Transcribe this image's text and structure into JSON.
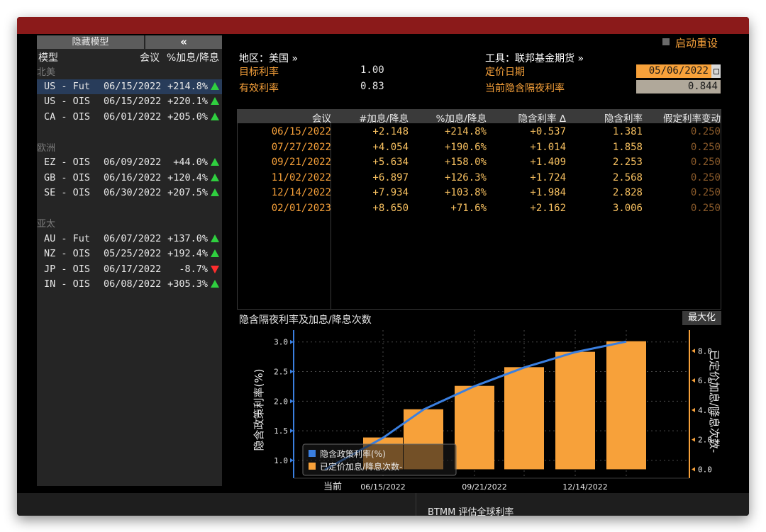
{
  "left_panel": {
    "hide_model_label": "隐藏模型",
    "collapse_label": "«",
    "headers": {
      "model": "模型",
      "meeting": "会议",
      "pct": "%加息/降息"
    },
    "groups": [
      {
        "name": "北美",
        "rows": [
          {
            "name": "US - Fut",
            "date": "06/15/2022",
            "pct": "+214.8%",
            "dir": "up",
            "selected": true
          },
          {
            "name": "US - OIS",
            "date": "06/15/2022",
            "pct": "+220.1%",
            "dir": "up"
          },
          {
            "name": "CA - OIS",
            "date": "06/01/2022",
            "pct": "+205.0%",
            "dir": "up"
          }
        ]
      },
      {
        "name": "欧洲",
        "rows": [
          {
            "name": "EZ - OIS",
            "date": "06/09/2022",
            "pct": "+44.0%",
            "dir": "up"
          },
          {
            "name": "GB - OIS",
            "date": "06/16/2022",
            "pct": "+120.4%",
            "dir": "up"
          },
          {
            "name": "SE - OIS",
            "date": "06/30/2022",
            "pct": "+207.5%",
            "dir": "up"
          }
        ]
      },
      {
        "name": "亚太",
        "rows": [
          {
            "name": "AU - Fut",
            "date": "06/07/2022",
            "pct": "+137.0%",
            "dir": "up"
          },
          {
            "name": "NZ - OIS",
            "date": "05/25/2022",
            "pct": "+192.4%",
            "dir": "up"
          },
          {
            "name": "JP - OIS",
            "date": "06/17/2022",
            "pct": "-8.7%",
            "dir": "down"
          },
          {
            "name": "IN - OIS",
            "date": "06/08/2022",
            "pct": "+305.3%",
            "dir": "up"
          }
        ]
      }
    ]
  },
  "top": {
    "restart_label": "启动重设",
    "region_label": "地区：美国 »",
    "tool_label": "工具：联邦基金期货 »",
    "target_rate_label": "目标利率",
    "target_rate_value": "1.00",
    "effective_rate_label": "有效利率",
    "effective_rate_value": "0.83",
    "pricing_date_label": "定价日期",
    "pricing_date_value": "05/06/2022",
    "implied_on_rate_label": "当前隐含隔夜利率",
    "implied_on_rate_value": "0.844"
  },
  "table": {
    "headers": [
      "会议",
      "#加息/降息",
      "%加息/降息",
      "隐含利率 Δ",
      "隐含利率",
      "假定利率变动"
    ],
    "rows": [
      [
        "06/15/2022",
        "+2.148",
        "+214.8%",
        "+0.537",
        "1.381",
        "0.250"
      ],
      [
        "07/27/2022",
        "+4.054",
        "+190.6%",
        "+1.014",
        "1.858",
        "0.250"
      ],
      [
        "09/21/2022",
        "+5.634",
        "+158.0%",
        "+1.409",
        "2.253",
        "0.250"
      ],
      [
        "11/02/2022",
        "+6.897",
        "+126.3%",
        "+1.724",
        "2.568",
        "0.250"
      ],
      [
        "12/14/2022",
        "+7.934",
        "+103.8%",
        "+1.984",
        "2.828",
        "0.250"
      ],
      [
        "02/01/2023",
        "+8.650",
        "+71.6%",
        "+2.162",
        "3.006",
        "0.250"
      ]
    ]
  },
  "chart_title": "隐含隔夜利率及加息/降息次数",
  "maximize_label": "最大化",
  "chart_data": {
    "type": "bar",
    "categories": [
      "当前",
      "06/15/2022",
      "07/27/2022",
      "09/21/2022",
      "11/02/2022",
      "12/14/2022",
      "02/01/2023"
    ],
    "x_tick_labels": [
      "当前",
      "06/15/2022",
      "09/21/2022",
      "12/14/2022"
    ],
    "series": [
      {
        "name": "隐含政策利率(%)",
        "type": "line",
        "axis": "left",
        "color": "#3a7fe0",
        "values": [
          0.844,
          1.381,
          1.858,
          2.253,
          2.568,
          2.828,
          3.006
        ]
      },
      {
        "name": "已定价加息/降息次数-",
        "type": "bar",
        "axis": "right",
        "color": "#f7a13a",
        "values": [
          0,
          2.148,
          4.054,
          5.634,
          6.897,
          7.934,
          8.65
        ]
      }
    ],
    "ylabel": "隐含政策利率(%)",
    "ylabel_right": "已定价加息/降息次数-",
    "ylim": [
      0.7,
      3.2
    ],
    "ylim_right": [
      -0.6,
      9.4
    ],
    "yticks": [
      "3.0",
      "2.5",
      "2.0",
      "1.5",
      "1.0"
    ],
    "yticks_right": [
      "8.0",
      "6.0",
      "4.0",
      "2.0",
      "0.0"
    ],
    "grid": true,
    "legend_position": "bottom-left"
  },
  "footer": {
    "function_label": "BTMM  评估全球利率"
  }
}
